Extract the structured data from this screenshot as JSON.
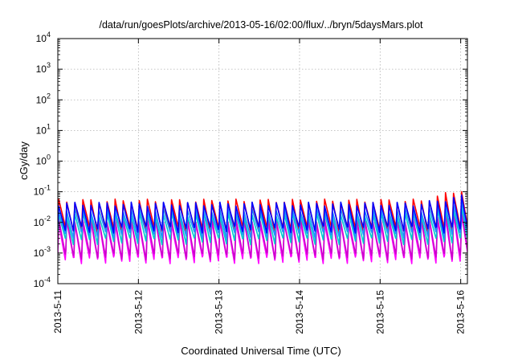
{
  "chart_data": {
    "type": "line",
    "title": "/data/run/goesPlots/archive/2013-05-16/02:00/flux/../bryn/5daysMars.plot",
    "xlabel": "Coordinated Universal Time (UTC)",
    "ylabel": "cGy/day",
    "yscale": "log",
    "ylim": [
      0.0001,
      10000
    ],
    "xlim": [
      "2013-05-11",
      "2013-05-16 02:00"
    ],
    "y_ticks": [
      {
        "value": 0.0001,
        "base": "10",
        "exp": "-4"
      },
      {
        "value": 0.001,
        "base": "10",
        "exp": "-3"
      },
      {
        "value": 0.01,
        "base": "10",
        "exp": "-2"
      },
      {
        "value": 0.1,
        "base": "10",
        "exp": "-1"
      },
      {
        "value": 1,
        "base": "10",
        "exp": "0"
      },
      {
        "value": 10,
        "base": "10",
        "exp": "1"
      },
      {
        "value": 100,
        "base": "10",
        "exp": "2"
      },
      {
        "value": 1000,
        "base": "10",
        "exp": "3"
      },
      {
        "value": 10000,
        "base": "10",
        "exp": "4"
      }
    ],
    "x_ticks": [
      {
        "value": 0,
        "label": "2013-5-11"
      },
      {
        "value": 1,
        "label": "2013-5-12"
      },
      {
        "value": 2,
        "label": "2013-5-13"
      },
      {
        "value": 3,
        "label": "2013-5-14"
      },
      {
        "value": 4,
        "label": "2013-5-15"
      },
      {
        "value": 5,
        "label": "2013-5-16"
      }
    ],
    "grid": true,
    "periods_per_day": 10,
    "series": [
      {
        "color": "#ff00ff",
        "peak_start": 0.01,
        "peak_end": 0.022,
        "trough": 0.0006
      },
      {
        "color": "#cc00cc",
        "peak_start": 0.012,
        "peak_end": 0.03,
        "trough": 0.0008
      },
      {
        "color": "#ff0000",
        "peak_start": 0.05,
        "peak_end": 0.13,
        "trough": 0.006
      },
      {
        "color": "#00cccc",
        "peak_start": 0.018,
        "peak_end": 0.035,
        "trough": 0.0025
      },
      {
        "color": "#2090ff",
        "peak_start": 0.025,
        "peak_end": 0.05,
        "trough": 0.004
      },
      {
        "color": "#0000ff",
        "peak_start": 0.04,
        "peak_end": 0.075,
        "trough": 0.006
      }
    ]
  }
}
